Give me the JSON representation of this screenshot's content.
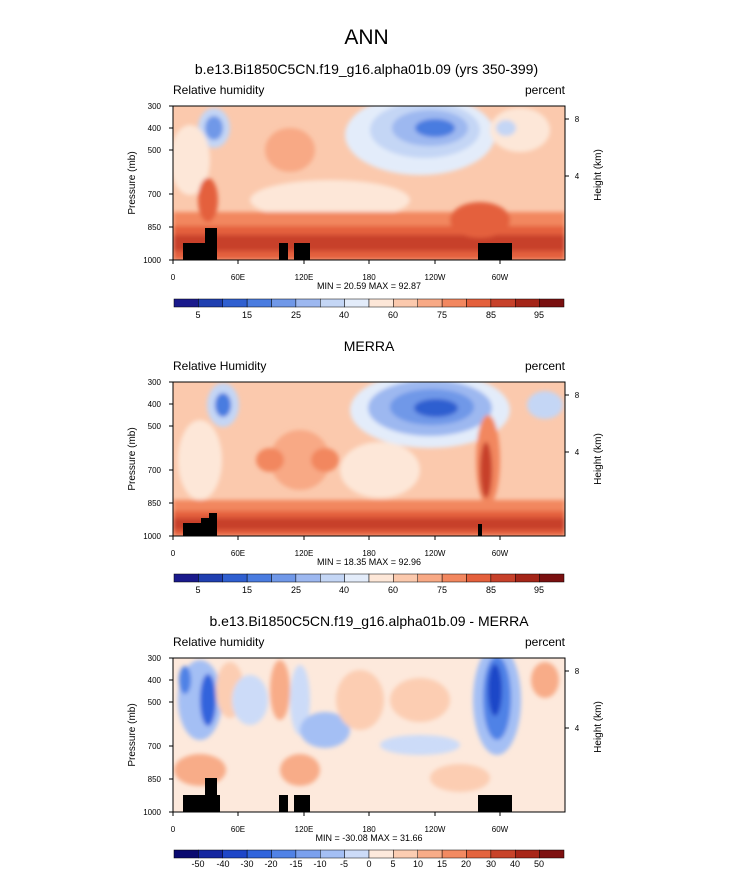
{
  "main_title": "ANN",
  "panels": [
    {
      "title": "b.e13.Bi1850C5CN.f19_g16.alpha01b.09 (yrs 350-399)",
      "left_label": "Relative humidity",
      "right_label": "percent",
      "y_label": "Pressure (mb)",
      "y2_label": "Height (km)",
      "stats": "MIN = 20.59  MAX = 92.87"
    },
    {
      "title": "MERRA",
      "left_label": "Relative Humidity",
      "right_label": "percent",
      "y_label": "Pressure (mb)",
      "y2_label": "Height (km)",
      "stats": "MIN = 18.35  MAX = 92.96"
    },
    {
      "title": "b.e13.Bi1850C5CN.f19_g16.alpha01b.09 - MERRA",
      "left_label": "Relative humidity",
      "right_label": "percent",
      "y_label": "Pressure (mb)",
      "y2_label": "Height (km)",
      "stats": "MIN = -30.08  MAX = 31.66"
    }
  ],
  "chart_data": [
    {
      "type": "heatmap",
      "title": "b.e13.Bi1850C5CN.f19_g16.alpha01b.09 (yrs 350-399)",
      "xlabel": "",
      "ylabel": "Pressure (mb)",
      "y2label": "Height (km)",
      "x_ticks": [
        "0",
        "60E",
        "120E",
        "180",
        "120W",
        "60W"
      ],
      "y_ticks": [
        "300",
        "400",
        "500",
        "700",
        "850",
        "1000"
      ],
      "y2_ticks": [
        "8",
        "4"
      ],
      "units": "percent",
      "min": 20.59,
      "max": 92.87,
      "colorbar_labels": [
        "5",
        "15",
        "25",
        "40",
        "60",
        "75",
        "85",
        "95"
      ]
    },
    {
      "type": "heatmap",
      "title": "MERRA",
      "xlabel": "",
      "ylabel": "Pressure (mb)",
      "y2label": "Height (km)",
      "x_ticks": [
        "0",
        "60E",
        "120E",
        "180",
        "120W",
        "60W"
      ],
      "y_ticks": [
        "300",
        "400",
        "500",
        "700",
        "850",
        "1000"
      ],
      "y2_ticks": [
        "8",
        "4"
      ],
      "units": "percent",
      "min": 18.35,
      "max": 92.96,
      "colorbar_labels": [
        "5",
        "15",
        "25",
        "40",
        "60",
        "75",
        "85",
        "95"
      ]
    },
    {
      "type": "heatmap",
      "title": "b.e13.Bi1850C5CN.f19_g16.alpha01b.09 - MERRA",
      "xlabel": "",
      "ylabel": "Pressure (mb)",
      "y2label": "Height (km)",
      "x_ticks": [
        "0",
        "60E",
        "120E",
        "180",
        "120W",
        "60W"
      ],
      "y_ticks": [
        "300",
        "400",
        "500",
        "700",
        "850",
        "1000"
      ],
      "y2_ticks": [
        "8",
        "4"
      ],
      "units": "percent",
      "min": -30.08,
      "max": 31.66,
      "colorbar_labels": [
        "-50",
        "-40",
        "-30",
        "-20",
        "-15",
        "-10",
        "-5",
        "0",
        "5",
        "10",
        "15",
        "20",
        "30",
        "40",
        "50"
      ]
    }
  ],
  "colors": {
    "rh_scale": [
      "#1a1a8c",
      "#1f3fb0",
      "#2f5fd0",
      "#4a7ce0",
      "#7098e8",
      "#9db8f0",
      "#c4d6f5",
      "#e3ecfa",
      "#fde7d8",
      "#fbc9ad",
      "#f8a985",
      "#f2875f",
      "#e4603c",
      "#c7412a",
      "#a42518",
      "#7a1010"
    ],
    "diff_scale": [
      "#0a0a70",
      "#1426a0",
      "#1e46c8",
      "#3064dc",
      "#5082e6",
      "#7aa0ee",
      "#a4bff4",
      "#ccdbf8",
      "#fde9dc",
      "#fccdb2",
      "#f8ac88",
      "#f28a62",
      "#e4643e",
      "#c8432a",
      "#a82618",
      "#7e1010"
    ],
    "mask": "#000000"
  }
}
